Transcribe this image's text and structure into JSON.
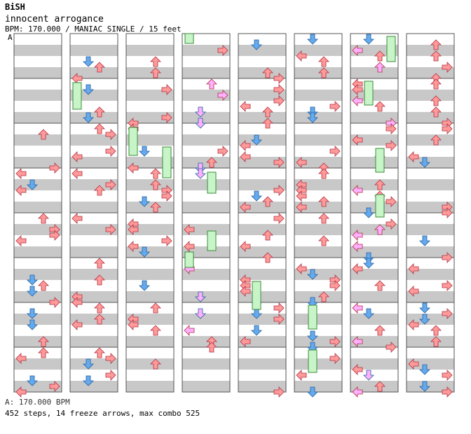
{
  "header": {
    "artist": "BiSH",
    "title": "innocent arrogance",
    "info": "BPM: 170.000 / MANIAC SINGLE / 15 feet",
    "marker": "A"
  },
  "footer": {
    "bpm_line": "A: 170.000 BPM",
    "stats_line": "452 steps, 14 freeze arrows, max combo 525"
  },
  "colors": {
    "stripe": "#c8c8c8",
    "border": "#555555",
    "left": "#ff9a9a",
    "down": "#66aaee",
    "up": "#ff9a9a",
    "right": "#ff9a9a",
    "alt_pink": "#ffb0ff",
    "freeze": "#c8f5c8"
  },
  "icons": [
    "left-arrow-icon",
    "down-arrow-icon",
    "up-arrow-icon",
    "right-arrow-icon",
    "freeze-arrow-icon"
  ]
}
